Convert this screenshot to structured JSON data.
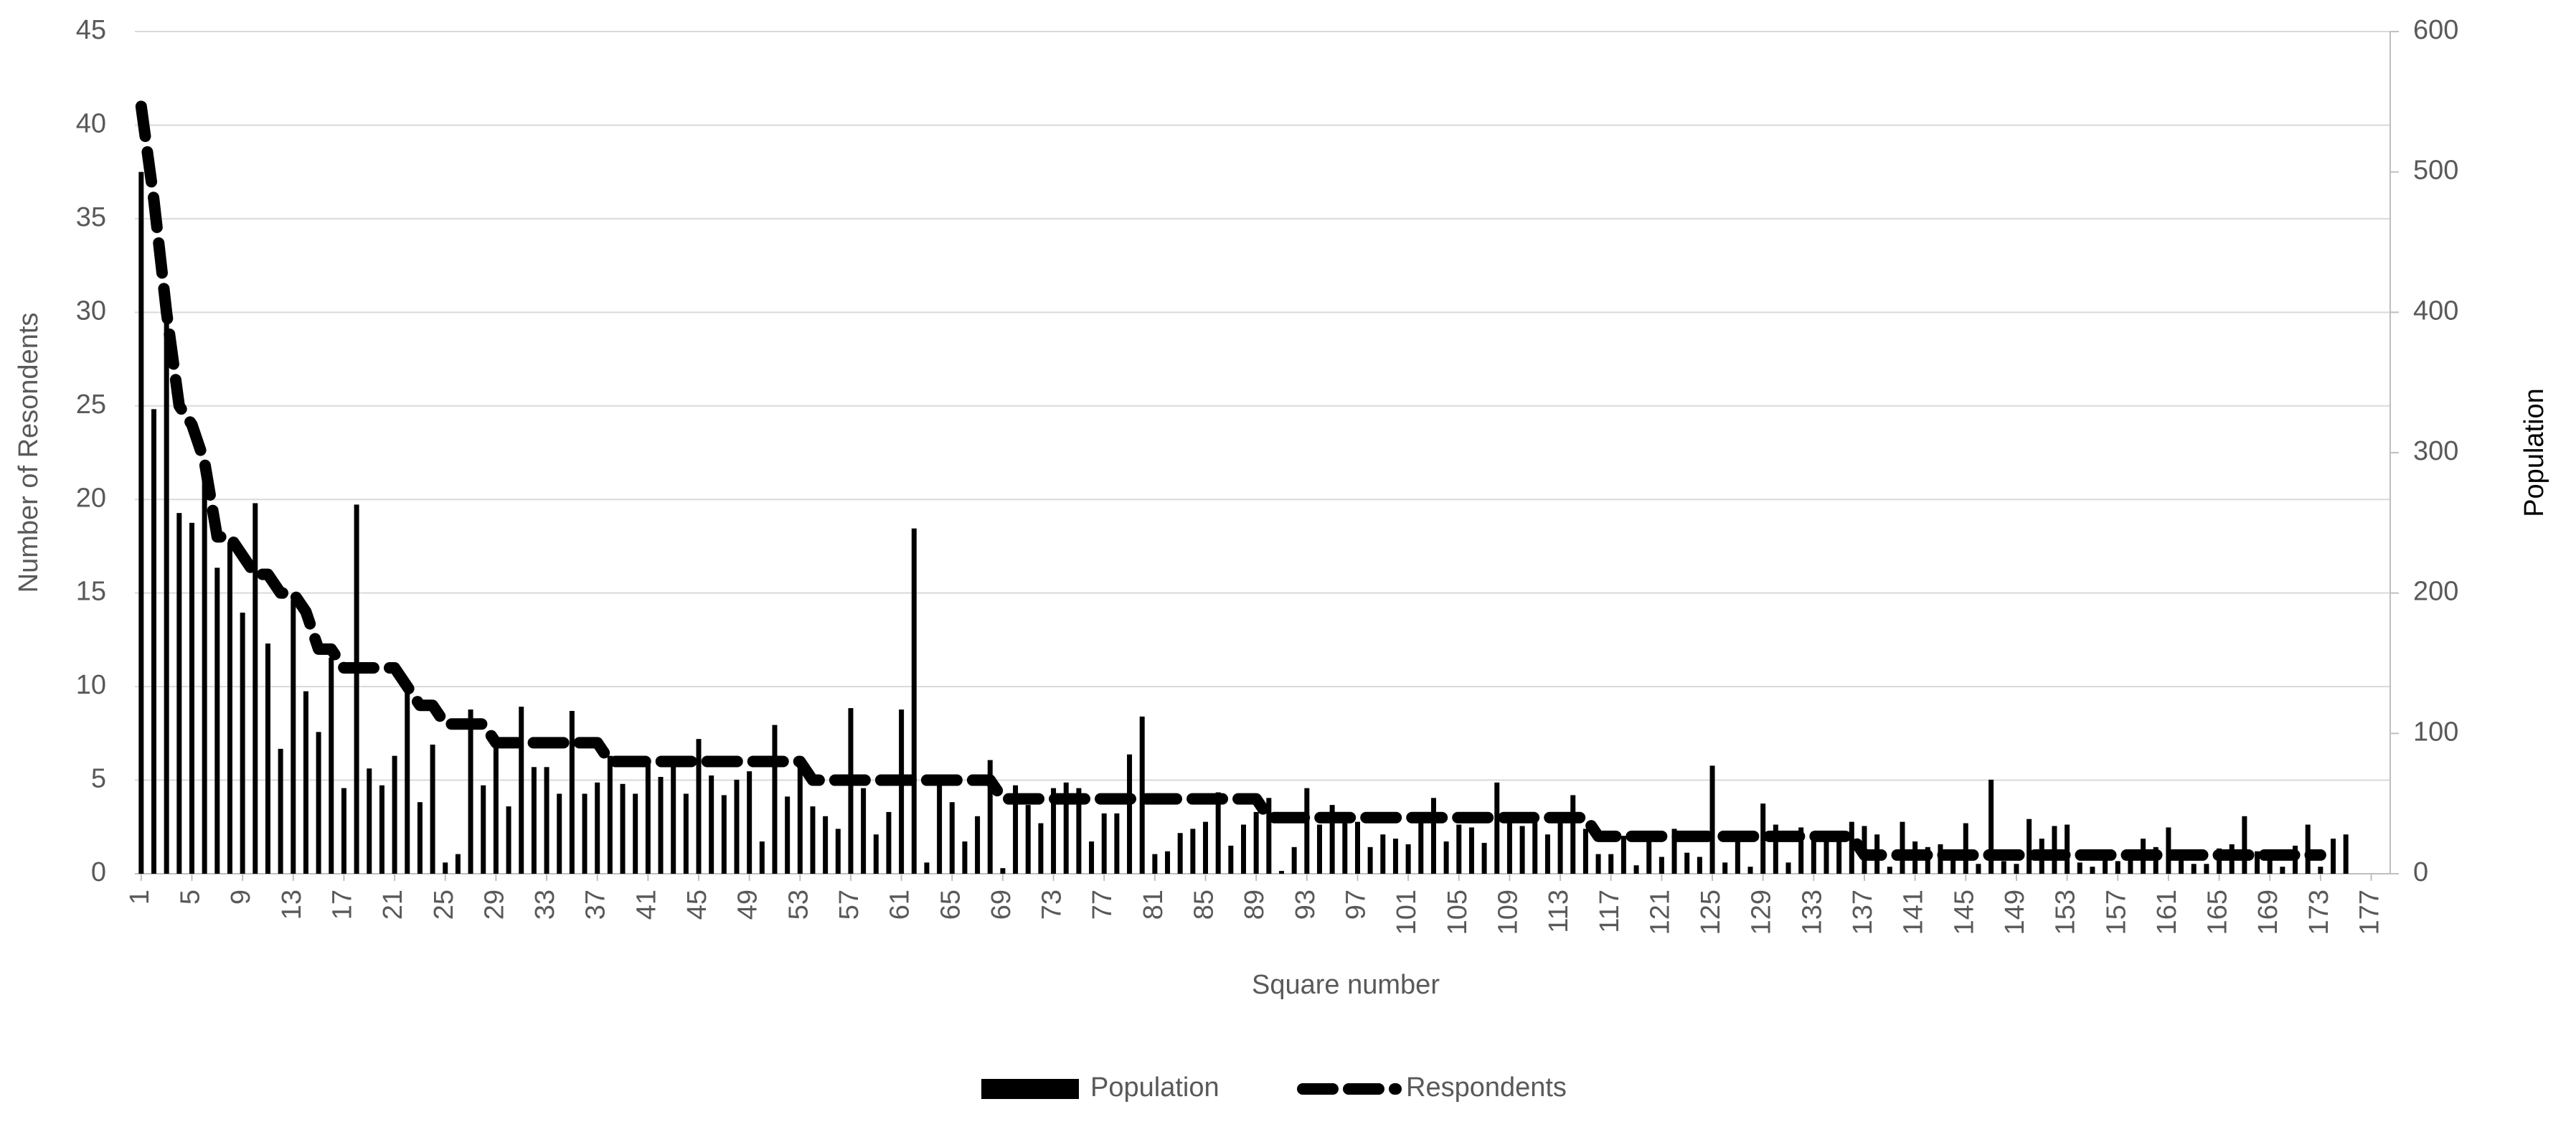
{
  "chart_data": {
    "type": "combo",
    "x_label": "Square number",
    "y_label": "Number of Resondents",
    "y2_label": "Population",
    "x": [
      1,
      2,
      3,
      4,
      5,
      6,
      7,
      8,
      9,
      10,
      11,
      12,
      13,
      14,
      15,
      16,
      17,
      18,
      19,
      20,
      21,
      22,
      23,
      24,
      25,
      26,
      27,
      28,
      29,
      30,
      31,
      32,
      33,
      34,
      35,
      36,
      37,
      38,
      39,
      40,
      41,
      42,
      43,
      44,
      45,
      46,
      47,
      48,
      49,
      50,
      51,
      52,
      53,
      54,
      55,
      56,
      57,
      58,
      59,
      60,
      61,
      62,
      63,
      64,
      65,
      66,
      67,
      68,
      69,
      70,
      71,
      72,
      73,
      74,
      75,
      76,
      77,
      78,
      79,
      80,
      81,
      82,
      83,
      84,
      85,
      86,
      87,
      88,
      89,
      90,
      91,
      92,
      93,
      94,
      95,
      96,
      97,
      98,
      99,
      100,
      101,
      102,
      103,
      104,
      105,
      106,
      107,
      108,
      109,
      110,
      111,
      112,
      113,
      114,
      115,
      116,
      117,
      118,
      119,
      120,
      121,
      122,
      123,
      124,
      125,
      126,
      127,
      128,
      129,
      130,
      131,
      132,
      133,
      134,
      135,
      136,
      137,
      138,
      139,
      140,
      141,
      142,
      143,
      144,
      145,
      146,
      147,
      148,
      149,
      150,
      151,
      152,
      153,
      154,
      155,
      156,
      157,
      158,
      159,
      160,
      161,
      162,
      163,
      164,
      165,
      166,
      167,
      168,
      169,
      170,
      171,
      172,
      173,
      174,
      175
    ],
    "series": [
      {
        "name": "Population",
        "type": "bar",
        "axis": "y2",
        "color": "#000000",
        "values": [
          500,
          331,
          412,
          257,
          250,
          283,
          218,
          236,
          186,
          264,
          164,
          89,
          195,
          130,
          101,
          154,
          61,
          263,
          75,
          63,
          84,
          131,
          51,
          92,
          8,
          14,
          117,
          63,
          91,
          48,
          119,
          76,
          76,
          57,
          116,
          57,
          65,
          84,
          64,
          57,
          78,
          69,
          82,
          57,
          96,
          70,
          56,
          67,
          73,
          23,
          106,
          55,
          81,
          48,
          41,
          32,
          118,
          61,
          28,
          44,
          117,
          246,
          8,
          70,
          51,
          23,
          41,
          81,
          4,
          63,
          49,
          36,
          61,
          65,
          61,
          23,
          43,
          43,
          85,
          112,
          14,
          16,
          29,
          32,
          37,
          58,
          20,
          35,
          44,
          54,
          2,
          19,
          61,
          35,
          49,
          40,
          37,
          19,
          28,
          25,
          21,
          37,
          54,
          23,
          35,
          33,
          22,
          65,
          37,
          34,
          40,
          28,
          40,
          56,
          32,
          14,
          14,
          27,
          6,
          23,
          12,
          32,
          15,
          12,
          77,
          8,
          26,
          5,
          50,
          35,
          8,
          33,
          30,
          26,
          28,
          37,
          34,
          28,
          5,
          37,
          23,
          19,
          21,
          14,
          36,
          7,
          67,
          9,
          7,
          39,
          25,
          34,
          35,
          8,
          5,
          16,
          9,
          12,
          25,
          19,
          33,
          14,
          7,
          7,
          18,
          21,
          41,
          16,
          16,
          5,
          20,
          35,
          5,
          25,
          28
        ]
      },
      {
        "name": "Respondents",
        "type": "line",
        "axis": "y",
        "color": "#000000",
        "values": [
          41,
          36,
          30,
          25,
          24,
          22,
          18,
          18,
          17,
          16,
          16,
          15,
          15,
          14,
          12,
          12,
          11,
          11,
          11,
          11,
          11,
          10,
          9,
          9,
          8,
          8,
          8,
          8,
          7,
          7,
          7,
          7,
          7,
          7,
          7,
          7,
          7,
          6,
          6,
          6,
          6,
          6,
          6,
          6,
          6,
          6,
          6,
          6,
          6,
          6,
          6,
          6,
          6,
          5,
          5,
          5,
          5,
          5,
          5,
          5,
          5,
          5,
          5,
          5,
          5,
          5,
          5,
          5,
          4,
          4,
          4,
          4,
          4,
          4,
          4,
          4,
          4,
          4,
          4,
          4,
          4,
          4,
          4,
          4,
          4,
          4,
          4,
          4,
          4,
          3,
          3,
          3,
          3,
          3,
          3,
          3,
          3,
          3,
          3,
          3,
          3,
          3,
          3,
          3,
          3,
          3,
          3,
          3,
          3,
          3,
          3,
          3,
          3,
          3,
          3,
          2,
          2,
          2,
          2,
          2,
          2,
          2,
          2,
          2,
          2,
          2,
          2,
          2,
          2,
          2,
          2,
          2,
          2,
          2,
          2,
          2,
          1,
          1,
          1,
          1,
          1,
          1,
          1,
          1,
          1,
          1,
          1,
          1,
          1,
          1,
          1,
          1,
          1,
          1,
          1,
          1,
          1,
          1,
          1,
          1,
          1,
          1,
          1,
          1,
          1,
          1,
          1,
          1,
          1,
          1,
          1,
          1,
          1,
          null,
          null
        ]
      }
    ],
    "xlim": [
      0.5,
      178.5
    ],
    "xticks": [
      1,
      5,
      9,
      13,
      17,
      21,
      25,
      29,
      33,
      37,
      41,
      45,
      49,
      53,
      57,
      61,
      65,
      69,
      73,
      77,
      81,
      85,
      89,
      93,
      97,
      101,
      105,
      109,
      113,
      117,
      121,
      125,
      129,
      133,
      137,
      141,
      145,
      149,
      153,
      157,
      161,
      165,
      169,
      173,
      177
    ],
    "ylim": [
      0,
      45
    ],
    "yticks": [
      0,
      5,
      10,
      15,
      20,
      25,
      30,
      35,
      40,
      45
    ],
    "y2lim": [
      0,
      600
    ],
    "y2ticks": [
      0,
      100,
      200,
      300,
      400,
      500,
      600
    ],
    "grid": true,
    "legend": "bottom"
  }
}
